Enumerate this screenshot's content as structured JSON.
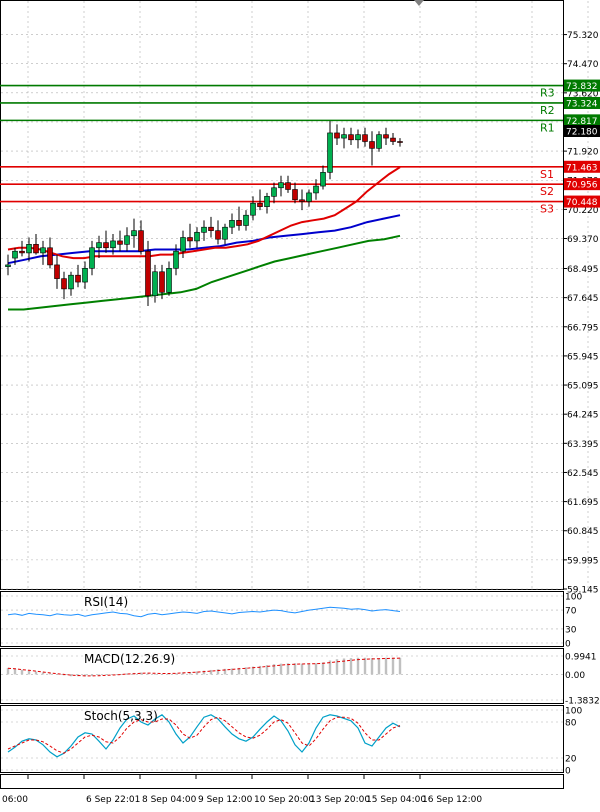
{
  "colors": {
    "bull_body": "#00b050",
    "bear_body": "#c00000",
    "support": "#e00000",
    "resistance": "#007a00",
    "ma_fast": "#e00000",
    "ma_mid": "#0000cc",
    "ma_slow": "#008000",
    "rsi_line": "#1e90ff",
    "macd_signal": "#e00000",
    "macd_hist": "#c0c0c0",
    "stoch_k": "#00a0c8",
    "stoch_d": "#e00000",
    "grid": "#b0b0b0",
    "price_label_bg": "#000000"
  },
  "chart_data": [
    {
      "type": "candlestick",
      "ylim": [
        59.145,
        75.745
      ],
      "price_ticks": [
        "75.320",
        "74.470",
        "73.620",
        "72.770",
        "71.920",
        "71.070",
        "70.220",
        "69.370",
        "68.495",
        "67.645",
        "66.795",
        "65.945",
        "65.095",
        "64.245",
        "63.395",
        "62.545",
        "61.695",
        "60.845",
        "59.995",
        "59.145"
      ],
      "x_ticks": [
        "5 Sep 06:00",
        "6 Sep 22:01",
        "8 Sep 04:00",
        "9 Sep 12:00",
        "10 Sep 20:00",
        "13 Sep 20:00",
        "15 Sep 04:00",
        "16 Sep 12:00"
      ],
      "current_price": "72.180",
      "levels": [
        {
          "name": "R3",
          "value": 73.832,
          "kind": "resistance"
        },
        {
          "name": "R2",
          "value": 73.324,
          "kind": "resistance"
        },
        {
          "name": "R1",
          "value": 72.817,
          "kind": "resistance"
        },
        {
          "name": "S1",
          "value": 71.463,
          "kind": "support"
        },
        {
          "name": "S2",
          "value": 70.956,
          "kind": "support"
        },
        {
          "name": "S3",
          "value": 70.448,
          "kind": "support"
        }
      ],
      "level_labels": [
        "73.832",
        "73.324",
        "72.817",
        "71.463",
        "70.956",
        "70.448"
      ],
      "candles": [
        {
          "o": 68.55,
          "h": 68.9,
          "l": 68.3,
          "c": 68.6
        },
        {
          "o": 68.8,
          "h": 69.1,
          "l": 68.6,
          "c": 69.0
        },
        {
          "o": 69.0,
          "h": 69.3,
          "l": 68.85,
          "c": 68.95
        },
        {
          "o": 68.95,
          "h": 69.4,
          "l": 68.7,
          "c": 69.2
        },
        {
          "o": 69.2,
          "h": 69.5,
          "l": 68.9,
          "c": 68.95
        },
        {
          "o": 68.95,
          "h": 69.3,
          "l": 68.6,
          "c": 69.1
        },
        {
          "o": 69.1,
          "h": 69.4,
          "l": 68.5,
          "c": 68.6
        },
        {
          "o": 68.6,
          "h": 68.9,
          "l": 67.9,
          "c": 68.2
        },
        {
          "o": 68.2,
          "h": 68.4,
          "l": 67.6,
          "c": 67.9
        },
        {
          "o": 67.9,
          "h": 68.4,
          "l": 67.7,
          "c": 68.3
        },
        {
          "o": 68.3,
          "h": 68.6,
          "l": 67.95,
          "c": 68.1
        },
        {
          "o": 68.1,
          "h": 68.7,
          "l": 67.9,
          "c": 68.5
        },
        {
          "o": 68.5,
          "h": 69.3,
          "l": 68.3,
          "c": 69.1
        },
        {
          "o": 69.1,
          "h": 69.45,
          "l": 68.8,
          "c": 69.25
        },
        {
          "o": 69.25,
          "h": 69.6,
          "l": 68.95,
          "c": 69.1
        },
        {
          "o": 69.1,
          "h": 69.5,
          "l": 68.9,
          "c": 69.3
        },
        {
          "o": 69.3,
          "h": 69.6,
          "l": 69.0,
          "c": 69.2
        },
        {
          "o": 69.2,
          "h": 69.7,
          "l": 69.0,
          "c": 69.45
        },
        {
          "o": 69.45,
          "h": 69.95,
          "l": 69.1,
          "c": 69.6
        },
        {
          "o": 69.6,
          "h": 69.9,
          "l": 68.9,
          "c": 69.0
        },
        {
          "o": 69.0,
          "h": 69.3,
          "l": 67.4,
          "c": 67.7
        },
        {
          "o": 67.7,
          "h": 68.6,
          "l": 67.5,
          "c": 68.4
        },
        {
          "o": 68.4,
          "h": 68.6,
          "l": 67.6,
          "c": 67.8
        },
        {
          "o": 67.8,
          "h": 68.7,
          "l": 67.7,
          "c": 68.5
        },
        {
          "o": 68.5,
          "h": 69.2,
          "l": 68.3,
          "c": 69.0
        },
        {
          "o": 69.0,
          "h": 69.6,
          "l": 68.8,
          "c": 69.4
        },
        {
          "o": 69.4,
          "h": 69.8,
          "l": 69.1,
          "c": 69.3
        },
        {
          "o": 69.3,
          "h": 69.7,
          "l": 69.1,
          "c": 69.55
        },
        {
          "o": 69.55,
          "h": 69.9,
          "l": 69.3,
          "c": 69.7
        },
        {
          "o": 69.7,
          "h": 70.0,
          "l": 69.4,
          "c": 69.6
        },
        {
          "o": 69.6,
          "h": 69.9,
          "l": 69.2,
          "c": 69.35
        },
        {
          "o": 69.35,
          "h": 69.8,
          "l": 69.2,
          "c": 69.7
        },
        {
          "o": 69.7,
          "h": 70.1,
          "l": 69.5,
          "c": 69.9
        },
        {
          "o": 69.9,
          "h": 70.3,
          "l": 69.6,
          "c": 69.75
        },
        {
          "o": 69.75,
          "h": 70.2,
          "l": 69.6,
          "c": 70.05
        },
        {
          "o": 70.05,
          "h": 70.6,
          "l": 69.9,
          "c": 70.4
        },
        {
          "o": 70.4,
          "h": 70.8,
          "l": 70.2,
          "c": 70.3
        },
        {
          "o": 70.3,
          "h": 70.7,
          "l": 70.1,
          "c": 70.6
        },
        {
          "o": 70.6,
          "h": 71.0,
          "l": 70.4,
          "c": 70.85
        },
        {
          "o": 70.85,
          "h": 71.2,
          "l": 70.6,
          "c": 71.0
        },
        {
          "o": 71.0,
          "h": 71.2,
          "l": 70.7,
          "c": 70.8
        },
        {
          "o": 70.8,
          "h": 71.0,
          "l": 70.4,
          "c": 70.5
        },
        {
          "o": 70.5,
          "h": 70.8,
          "l": 70.2,
          "c": 70.45
        },
        {
          "o": 70.45,
          "h": 70.8,
          "l": 70.3,
          "c": 70.7
        },
        {
          "o": 70.7,
          "h": 71.1,
          "l": 70.5,
          "c": 70.9
        },
        {
          "o": 70.9,
          "h": 71.5,
          "l": 70.8,
          "c": 71.3
        },
        {
          "o": 71.3,
          "h": 72.8,
          "l": 71.1,
          "c": 72.45
        },
        {
          "o": 72.45,
          "h": 72.7,
          "l": 72.1,
          "c": 72.3
        },
        {
          "o": 72.3,
          "h": 72.6,
          "l": 72.0,
          "c": 72.4
        },
        {
          "o": 72.4,
          "h": 72.6,
          "l": 72.1,
          "c": 72.25
        },
        {
          "o": 72.25,
          "h": 72.55,
          "l": 72.0,
          "c": 72.4
        },
        {
          "o": 72.4,
          "h": 72.6,
          "l": 72.05,
          "c": 72.2
        },
        {
          "o": 72.2,
          "h": 72.5,
          "l": 71.5,
          "c": 72.0
        },
        {
          "o": 72.0,
          "h": 72.5,
          "l": 71.9,
          "c": 72.4
        },
        {
          "o": 72.4,
          "h": 72.6,
          "l": 72.1,
          "c": 72.3
        },
        {
          "o": 72.3,
          "h": 72.45,
          "l": 72.1,
          "c": 72.2
        },
        {
          "o": 72.2,
          "h": 72.3,
          "l": 72.05,
          "c": 72.18
        }
      ],
      "ma_fast": [
        69.05,
        69.1,
        69.1,
        69.05,
        68.95,
        68.85,
        68.8,
        68.8,
        68.85,
        68.85,
        68.85,
        68.85,
        68.85,
        68.85,
        68.9,
        68.9,
        68.95,
        69.0,
        69.05,
        69.1,
        69.1,
        69.15,
        69.2,
        69.3,
        69.45,
        69.6,
        69.75,
        69.85,
        69.9,
        69.95,
        70.05,
        70.25,
        70.45,
        70.75,
        71.0,
        71.25,
        71.45
      ],
      "ma_mid": [
        68.65,
        68.75,
        68.85,
        68.9,
        68.95,
        69.0,
        69.0,
        69.0,
        69.0,
        69.05,
        69.05,
        69.05,
        69.1,
        69.15,
        69.25,
        69.3,
        69.4,
        69.45,
        69.5,
        69.55,
        69.6,
        69.7,
        69.85,
        69.95,
        70.05
      ],
      "ma_slow": [
        67.3,
        67.3,
        67.35,
        67.4,
        67.45,
        67.5,
        67.55,
        67.6,
        67.65,
        67.7,
        67.75,
        67.8,
        67.9,
        68.1,
        68.25,
        68.4,
        68.55,
        68.7,
        68.8,
        68.9,
        69.0,
        69.1,
        69.2,
        69.3,
        69.35,
        69.45
      ]
    },
    {
      "type": "line",
      "title": "RSI(14)",
      "ylim": [
        0,
        100
      ],
      "y_ticks": [
        "100",
        "70",
        "30",
        "0"
      ],
      "series": [
        {
          "name": "RSI(14)",
          "values": [
            60,
            62,
            59,
            63,
            61,
            60,
            58,
            62,
            60,
            59,
            61,
            57,
            60,
            62,
            64,
            66,
            63,
            62,
            58,
            56,
            61,
            63,
            60,
            62,
            64,
            66,
            65,
            63,
            67,
            68,
            66,
            64,
            62,
            65,
            66,
            67,
            66,
            68,
            70,
            69,
            66,
            64,
            67,
            70,
            72,
            74,
            76,
            75,
            74,
            72,
            73,
            71,
            68,
            70,
            71,
            69,
            67
          ]
        }
      ]
    },
    {
      "type": "bar",
      "title": "MACD(12.26.9)",
      "ylim": [
        -1.3832,
        0.9941
      ],
      "y_ticks": [
        "0.9941",
        "0.00",
        "-1.3832"
      ],
      "hist": [
        0.35,
        0.3,
        0.25,
        0.2,
        0.15,
        0.1,
        0.05,
        0.0,
        -0.05,
        -0.1,
        -0.1,
        -0.1,
        -0.08,
        -0.05,
        -0.03,
        0.0,
        0.02,
        0.05,
        0.08,
        0.1,
        0.05,
        0.02,
        0.0,
        0.03,
        0.06,
        0.1,
        0.13,
        0.16,
        0.2,
        0.24,
        0.28,
        0.3,
        0.32,
        0.35,
        0.38,
        0.42,
        0.46,
        0.5,
        0.55,
        0.58,
        0.6,
        0.6,
        0.58,
        0.58,
        0.6,
        0.65,
        0.75,
        0.82,
        0.86,
        0.88,
        0.9,
        0.9,
        0.88,
        0.88,
        0.9,
        0.9,
        0.9
      ],
      "signal": [
        0.33,
        0.3,
        0.26,
        0.22,
        0.18,
        0.13,
        0.08,
        0.04,
        0.0,
        -0.04,
        -0.06,
        -0.08,
        -0.08,
        -0.07,
        -0.05,
        -0.03,
        -0.01,
        0.02,
        0.04,
        0.06,
        0.07,
        0.06,
        0.05,
        0.05,
        0.06,
        0.08,
        0.1,
        0.12,
        0.15,
        0.18,
        0.21,
        0.24,
        0.27,
        0.3,
        0.33,
        0.36,
        0.39,
        0.43,
        0.46,
        0.5,
        0.53,
        0.55,
        0.56,
        0.57,
        0.58,
        0.6,
        0.64,
        0.68,
        0.72,
        0.76,
        0.8,
        0.82,
        0.84,
        0.85,
        0.86,
        0.87,
        0.88
      ]
    },
    {
      "type": "line",
      "title": "Stoch(5,3,3)",
      "ylim": [
        0,
        100
      ],
      "y_ticks": [
        "100",
        "80",
        "20",
        "0"
      ],
      "series": [
        {
          "name": "%K",
          "values": [
            30,
            38,
            48,
            52,
            50,
            42,
            30,
            22,
            28,
            40,
            55,
            62,
            60,
            48,
            35,
            50,
            70,
            85,
            90,
            80,
            75,
            85,
            92,
            80,
            60,
            45,
            55,
            72,
            88,
            92,
            85,
            72,
            60,
            52,
            48,
            55,
            68,
            80,
            90,
            82,
            65,
            42,
            30,
            45,
            70,
            88,
            92,
            90,
            86,
            82,
            70,
            45,
            40,
            55,
            70,
            78,
            72
          ]
        },
        {
          "name": "%D",
          "values": [
            35,
            40,
            45,
            50,
            50,
            47,
            40,
            32,
            28,
            35,
            45,
            55,
            58,
            55,
            47,
            45,
            55,
            70,
            80,
            84,
            80,
            80,
            85,
            85,
            75,
            60,
            53,
            58,
            72,
            84,
            88,
            82,
            72,
            62,
            55,
            53,
            58,
            68,
            80,
            84,
            78,
            62,
            45,
            40,
            52,
            68,
            82,
            88,
            88,
            86,
            78,
            62,
            50,
            50,
            60,
            70,
            74
          ]
        }
      ]
    }
  ]
}
